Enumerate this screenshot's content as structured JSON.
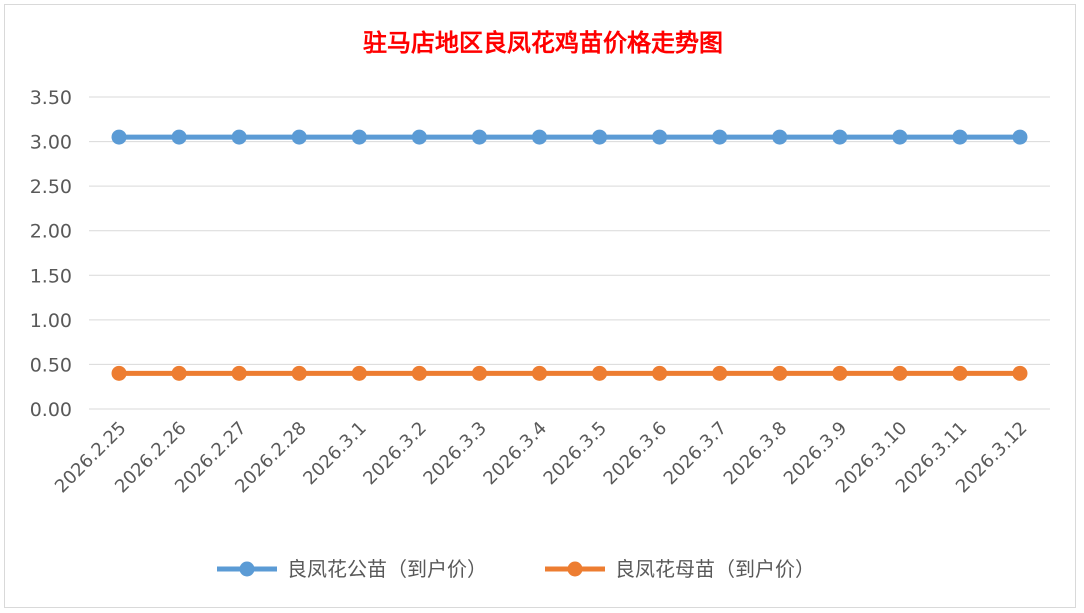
{
  "chart_data": {
    "type": "line",
    "title": "驻马店地区良凤花鸡苗价格走势图",
    "title_color": "#ff0000",
    "categories": [
      "2026.2.25",
      "2026.2.26",
      "2026.2.27",
      "2026.2.28",
      "2026.3.1",
      "2026.3.2",
      "2026.3.3",
      "2026.3.4",
      "2026.3.5",
      "2026.3.6",
      "2026.3.7",
      "2026.3.8",
      "2026.3.9",
      "2026.3.10",
      "2026.3.11",
      "2026.3.12"
    ],
    "yticks": [
      "0.00",
      "0.50",
      "1.00",
      "1.50",
      "2.00",
      "2.50",
      "3.00",
      "3.50"
    ],
    "ylim": [
      0,
      3.5
    ],
    "grid": true,
    "legend_position": "bottom",
    "series": [
      {
        "name": "良凤花公苗（到户价）",
        "color": "#5b9bd5",
        "values": [
          3.05,
          3.05,
          3.05,
          3.05,
          3.05,
          3.05,
          3.05,
          3.05,
          3.05,
          3.05,
          3.05,
          3.05,
          3.05,
          3.05,
          3.05,
          3.05
        ]
      },
      {
        "name": "良凤花母苗（到户价）",
        "color": "#ed7d31",
        "values": [
          0.4,
          0.4,
          0.4,
          0.4,
          0.4,
          0.4,
          0.4,
          0.4,
          0.4,
          0.4,
          0.4,
          0.4,
          0.4,
          0.4,
          0.4,
          0.4
        ]
      }
    ]
  }
}
